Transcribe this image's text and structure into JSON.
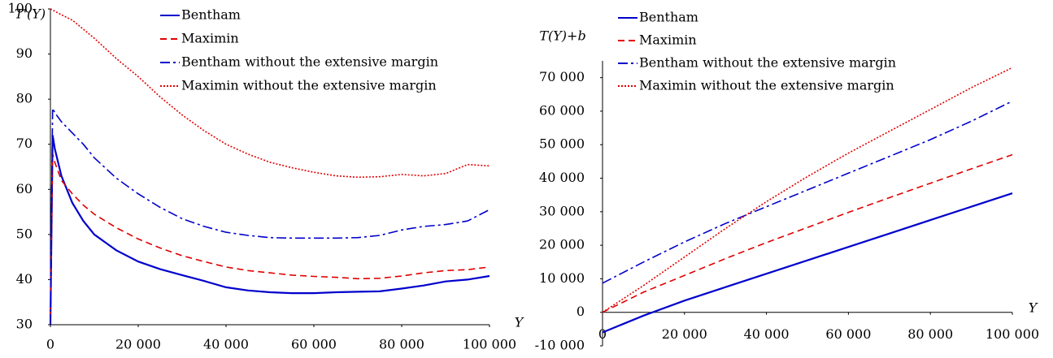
{
  "chart_data": [
    {
      "type": "line",
      "y_label": "T'(Y)",
      "x_label": "Y",
      "x": [
        0,
        500,
        1000,
        2500,
        5000,
        7500,
        10000,
        15000,
        20000,
        25000,
        30000,
        35000,
        40000,
        45000,
        50000,
        55000,
        60000,
        65000,
        70000,
        75000,
        80000,
        85000,
        90000,
        95000,
        100000
      ],
      "xlim": [
        0,
        100000
      ],
      "xticks": [
        0,
        {
          "value": 20000,
          "label": "20 000"
        },
        {
          "value": 40000,
          "label": "40 000"
        },
        {
          "value": 60000,
          "label": "60 000"
        },
        {
          "value": 80000,
          "label": "80 000"
        },
        {
          "value": 100000,
          "label": "100 000"
        }
      ],
      "ylim": [
        30,
        100
      ],
      "yticks": [
        30,
        40,
        50,
        60,
        70,
        80,
        90,
        100
      ],
      "grid": false,
      "series": [
        {
          "name": "Bentham",
          "color": "#0000cc",
          "dash": "solid",
          "values": [
            30,
            72,
            69,
            63,
            57,
            53,
            50,
            46.5,
            44,
            42.3,
            41,
            39.7,
            38.3,
            37.6,
            37.2,
            37,
            37,
            37.2,
            37.3,
            37.4,
            38,
            38.7,
            39.6,
            40,
            40.8
          ]
        },
        {
          "name": "Maximin",
          "color": "#e00000",
          "dash": "dashed",
          "values": [
            30,
            68,
            66,
            62,
            59,
            56.5,
            54.5,
            51.5,
            49,
            47,
            45.3,
            44,
            42.8,
            42,
            41.5,
            41,
            40.7,
            40.5,
            40.2,
            40.3,
            40.8,
            41.5,
            42,
            42.2,
            42.8
          ]
        },
        {
          "name": "Bentham without the extensive margin",
          "color": "#0000cc",
          "dash": "dashdot",
          "values": [
            30,
            78,
            77,
            75,
            72.5,
            70,
            67,
            62.5,
            59,
            56,
            53.5,
            51.8,
            50.5,
            49.8,
            49.3,
            49.2,
            49.2,
            49.2,
            49.3,
            49.8,
            51,
            51.8,
            52.2,
            53,
            55.5
          ]
        },
        {
          "name": "Maximin without the extensive margin",
          "color": "#e00000",
          "dash": "dotted",
          "values": [
            100,
            99.8,
            99.5,
            98.7,
            97.5,
            95.5,
            93.5,
            89,
            85,
            80.5,
            76.5,
            73,
            70,
            67.8,
            66,
            64.8,
            63.8,
            63,
            62.7,
            62.8,
            63.3,
            63,
            63.5,
            65.5,
            65.2
          ]
        }
      ]
    },
    {
      "type": "line",
      "y_label": "T(Y)+b",
      "x_label": "Y",
      "x": [
        0,
        10000,
        20000,
        30000,
        40000,
        50000,
        60000,
        70000,
        80000,
        90000,
        100000
      ],
      "xlim": [
        0,
        100000
      ],
      "xticks": [
        0,
        {
          "value": 20000,
          "label": "20 000"
        },
        {
          "value": 40000,
          "label": "40 000"
        },
        {
          "value": 60000,
          "label": "60 000"
        },
        {
          "value": 80000,
          "label": "80 000"
        },
        {
          "value": 100000,
          "label": "100 000"
        }
      ],
      "ylim": [
        -10000,
        75000
      ],
      "yticks": [
        {
          "value": -10000,
          "label": "-10 000"
        },
        0,
        {
          "value": 10000,
          "label": "10 000"
        },
        {
          "value": 20000,
          "label": "20 000"
        },
        {
          "value": 30000,
          "label": "30 000"
        },
        {
          "value": 40000,
          "label": "40 000"
        },
        {
          "value": 50000,
          "label": "50 000"
        },
        {
          "value": 60000,
          "label": "60 000"
        },
        {
          "value": 70000,
          "label": "70 000"
        }
      ],
      "grid": false,
      "series": [
        {
          "name": "Bentham",
          "color": "#0000cc",
          "dash": "solid",
          "values": [
            -6000,
            -1000,
            3500,
            7500,
            11500,
            15500,
            19500,
            23500,
            27500,
            31500,
            35500
          ]
        },
        {
          "name": "Maximin",
          "color": "#e00000",
          "dash": "dashed",
          "values": [
            0,
            6000,
            11000,
            16000,
            20800,
            25300,
            29800,
            34200,
            38500,
            42800,
            47000
          ]
        },
        {
          "name": "Bentham without the extensive margin",
          "color": "#0000cc",
          "dash": "dashdot",
          "values": [
            8700,
            15000,
            21000,
            26500,
            31500,
            36500,
            41500,
            46500,
            51500,
            57000,
            63000
          ]
        },
        {
          "name": "Maximin without the extensive margin",
          "color": "#e00000",
          "dash": "dotted",
          "values": [
            0,
            8000,
            16500,
            25000,
            33000,
            40500,
            47500,
            54000,
            60500,
            67000,
            73000
          ]
        }
      ]
    }
  ]
}
